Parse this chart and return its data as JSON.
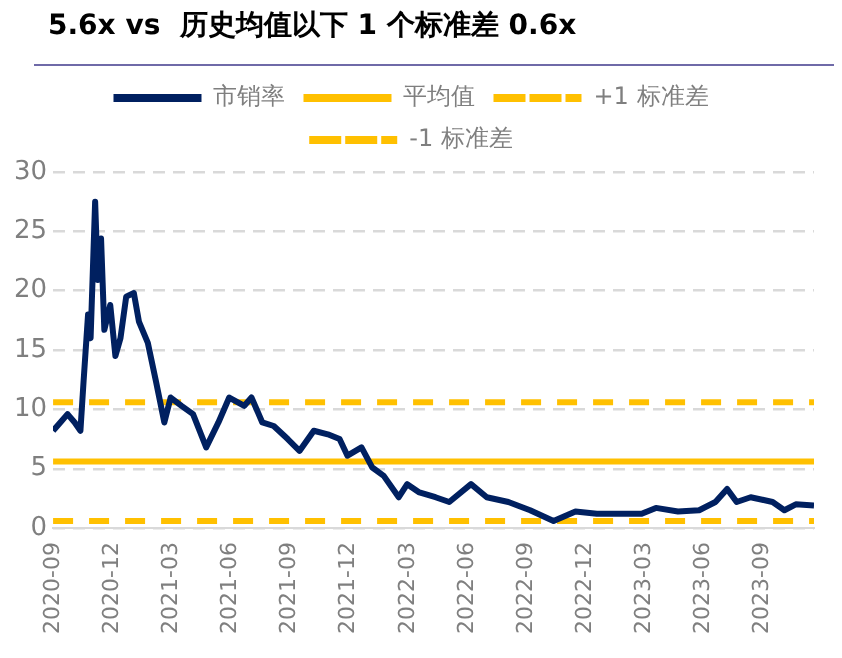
{
  "chart_data": {
    "type": "line",
    "title": "5.6x vs  历史均值以下 1 个标准差 0.6x",
    "series": [
      {
        "name": "市销率",
        "color": "#002060",
        "x": [
          "2020-09-01",
          "2020-09-12",
          "2020-09-23",
          "2020-10-04",
          "2020-10-13",
          "2020-10-18",
          "2020-10-25",
          "2020-10-29",
          "2020-11-05",
          "2020-11-09",
          "2020-11-14",
          "2020-11-19",
          "2020-11-28",
          "2020-12-06",
          "2020-12-14",
          "2020-12-23",
          "2021-01-04",
          "2021-01-12",
          "2021-01-26",
          "2021-02-07",
          "2021-02-19",
          "2021-02-28",
          "2021-03-17",
          "2021-04-04",
          "2021-04-24",
          "2021-05-13",
          "2021-05-30",
          "2021-06-22",
          "2021-07-03",
          "2021-07-20",
          "2021-08-07",
          "2021-08-29",
          "2021-09-16",
          "2021-10-08",
          "2021-10-30",
          "2021-11-17",
          "2021-11-29",
          "2021-12-21",
          "2022-01-07",
          "2022-01-25",
          "2022-02-16",
          "2022-02-28",
          "2022-03-19",
          "2022-04-13",
          "2022-05-04",
          "2022-06-07",
          "2022-07-01",
          "2022-08-04",
          "2022-09-07",
          "2022-10-13",
          "2022-11-16",
          "2022-12-19",
          "2023-01-22",
          "2023-02-25",
          "2023-03-19",
          "2023-04-22",
          "2023-05-25",
          "2023-06-19",
          "2023-07-07",
          "2023-07-22",
          "2023-08-13",
          "2023-09-16",
          "2023-10-04",
          "2023-10-22",
          "2023-11-19"
        ],
        "values": [
          8.2,
          8.9,
          9.6,
          8.9,
          8.2,
          12.4,
          18,
          16,
          27.5,
          20.9,
          24.4,
          16.7,
          18.8,
          14.5,
          16,
          19.5,
          19.8,
          17.4,
          15.6,
          12.4,
          8.9,
          11,
          10.3,
          9.6,
          6.8,
          8.9,
          11,
          10.3,
          11,
          8.9,
          8.6,
          7.5,
          6.5,
          8.2,
          7.9,
          7.5,
          6.1,
          6.8,
          5.1,
          4.4,
          2.6,
          3.7,
          3.0,
          2.6,
          2.2,
          3.7,
          2.6,
          2.2,
          1.5,
          0.6,
          1.4,
          1.2,
          1.2,
          1.2,
          1.7,
          1.4,
          1.5,
          2.2,
          3.3,
          2.2,
          2.6,
          2.2,
          1.5,
          2.0,
          1.9
        ]
      }
    ],
    "ref_lines": [
      {
        "axis": "y",
        "value": 5.6,
        "label": "平均值",
        "color": "#ffc000",
        "line_style": "solid"
      },
      {
        "axis": "y",
        "value": 10.6,
        "label": "+1 标准差",
        "color": "#ffc000",
        "line_style": "dashed"
      },
      {
        "axis": "y",
        "value": 0.6,
        "label": "-1 标准差",
        "color": "#ffc000",
        "line_style": "dashed"
      }
    ],
    "xlim": [
      "2020-09-01",
      "2023-11-19"
    ],
    "xticks": [
      "2020-09",
      "2020-12",
      "2021-03",
      "2021-06",
      "2021-09",
      "2021-12",
      "2022-03",
      "2022-06",
      "2022-09",
      "2022-12",
      "2023-03",
      "2023-06",
      "2023-09"
    ],
    "ylim": [
      0,
      30
    ],
    "yticks": [
      0,
      5,
      10,
      15,
      20,
      25,
      30
    ],
    "grid": "y",
    "legend": "top",
    "marker": "none",
    "line_style": "solid"
  }
}
